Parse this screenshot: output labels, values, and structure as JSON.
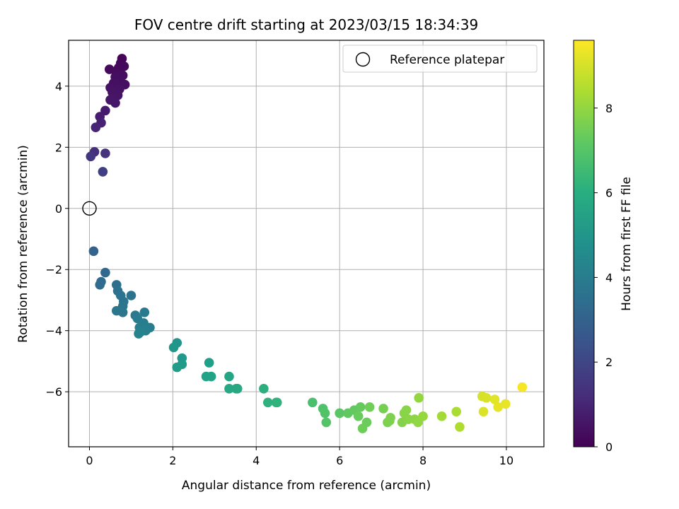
{
  "chart_data": {
    "type": "scatter",
    "title": "FOV centre drift starting at 2023/03/15 18:34:39",
    "xlabel": "Angular distance from reference (arcmin)",
    "ylabel": "Rotation from reference (arcmin)",
    "xlim": [
      -0.5,
      10.9
    ],
    "ylim": [
      -7.8,
      5.5
    ],
    "xticks": [
      0,
      2,
      4,
      6,
      8,
      10
    ],
    "yticks": [
      -6,
      -4,
      -2,
      0,
      2,
      4
    ],
    "grid": true,
    "legend": {
      "placement": "top-right",
      "entries": [
        {
          "label": "Reference platepar",
          "marker": "open-circle"
        }
      ]
    },
    "reference": {
      "x": 0,
      "y": 0
    },
    "colorbar": {
      "label": "Hours from first FF file",
      "range": [
        0,
        9.6
      ],
      "ticks": [
        0,
        2,
        4,
        6,
        8
      ],
      "colormap": "viridis"
    },
    "points": [
      [
        0.78,
        4.9,
        0.1
      ],
      [
        0.75,
        4.75,
        0.15
      ],
      [
        0.83,
        4.65,
        0.2
      ],
      [
        0.7,
        4.6,
        0.22
      ],
      [
        0.48,
        4.55,
        0.25
      ],
      [
        0.65,
        4.4,
        0.3
      ],
      [
        0.8,
        4.35,
        0.32
      ],
      [
        0.62,
        4.3,
        0.35
      ],
      [
        0.72,
        4.2,
        0.38
      ],
      [
        0.58,
        4.1,
        0.4
      ],
      [
        0.85,
        4.05,
        0.42
      ],
      [
        0.5,
        3.95,
        0.45
      ],
      [
        0.72,
        3.9,
        0.48
      ],
      [
        0.55,
        3.8,
        0.5
      ],
      [
        0.68,
        3.7,
        0.52
      ],
      [
        0.58,
        3.6,
        0.55
      ],
      [
        0.5,
        3.55,
        0.57
      ],
      [
        0.62,
        3.45,
        0.6
      ],
      [
        0.38,
        3.2,
        0.7
      ],
      [
        0.25,
        3.0,
        0.8
      ],
      [
        0.28,
        2.8,
        0.9
      ],
      [
        0.15,
        2.65,
        1.0
      ],
      [
        0.12,
        1.85,
        1.3
      ],
      [
        0.38,
        1.8,
        1.4
      ],
      [
        0.03,
        1.7,
        1.5
      ],
      [
        0.32,
        1.2,
        1.8
      ],
      [
        0.1,
        -1.4,
        3.0
      ],
      [
        0.38,
        -2.1,
        3.2
      ],
      [
        0.28,
        -2.4,
        3.3
      ],
      [
        0.25,
        -2.5,
        3.35
      ],
      [
        0.65,
        -2.5,
        3.5
      ],
      [
        0.68,
        -2.7,
        3.55
      ],
      [
        0.75,
        -2.85,
        3.6
      ],
      [
        1.0,
        -2.85,
        3.65
      ],
      [
        0.82,
        -3.05,
        3.7
      ],
      [
        0.8,
        -3.2,
        3.75
      ],
      [
        0.8,
        -3.4,
        3.8
      ],
      [
        0.65,
        -3.35,
        3.8
      ],
      [
        1.1,
        -3.5,
        3.9
      ],
      [
        1.32,
        -3.4,
        3.95
      ],
      [
        1.15,
        -3.6,
        4.0
      ],
      [
        1.3,
        -3.75,
        4.05
      ],
      [
        1.2,
        -3.9,
        4.1
      ],
      [
        1.45,
        -3.9,
        4.15
      ],
      [
        1.35,
        -4.0,
        4.2
      ],
      [
        1.22,
        -4.05,
        4.25
      ],
      [
        1.18,
        -4.1,
        4.3
      ],
      [
        2.1,
        -4.4,
        5.0
      ],
      [
        2.02,
        -4.55,
        5.05
      ],
      [
        2.22,
        -4.9,
        5.15
      ],
      [
        2.22,
        -5.1,
        5.2
      ],
      [
        2.1,
        -5.2,
        5.25
      ],
      [
        2.87,
        -5.05,
        5.4
      ],
      [
        2.8,
        -5.5,
        5.5
      ],
      [
        2.92,
        -5.5,
        5.55
      ],
      [
        3.35,
        -5.5,
        5.65
      ],
      [
        3.35,
        -5.9,
        5.7
      ],
      [
        3.55,
        -5.9,
        5.75
      ],
      [
        3.52,
        -5.9,
        5.78
      ],
      [
        4.18,
        -5.9,
        6.0
      ],
      [
        4.28,
        -6.35,
        6.1
      ],
      [
        4.5,
        -6.35,
        6.15
      ],
      [
        4.48,
        -6.35,
        6.18
      ],
      [
        5.35,
        -6.35,
        6.8
      ],
      [
        5.6,
        -6.55,
        6.9
      ],
      [
        5.65,
        -6.7,
        6.95
      ],
      [
        5.68,
        -7.0,
        7.0
      ],
      [
        6.0,
        -6.7,
        7.1
      ],
      [
        6.2,
        -6.7,
        7.2
      ],
      [
        6.35,
        -6.6,
        7.25
      ],
      [
        6.5,
        -6.5,
        7.3
      ],
      [
        6.45,
        -6.8,
        7.35
      ],
      [
        6.65,
        -7.0,
        7.4
      ],
      [
        6.55,
        -7.2,
        7.45
      ],
      [
        6.72,
        -6.5,
        7.5
      ],
      [
        7.05,
        -6.55,
        7.6
      ],
      [
        7.15,
        -7.0,
        7.65
      ],
      [
        7.22,
        -6.85,
        7.7
      ],
      [
        7.2,
        -6.95,
        7.72
      ],
      [
        7.5,
        -7.0,
        7.8
      ],
      [
        7.55,
        -6.7,
        7.85
      ],
      [
        7.6,
        -6.6,
        7.88
      ],
      [
        7.65,
        -6.9,
        7.9
      ],
      [
        7.8,
        -6.9,
        7.95
      ],
      [
        7.88,
        -7.0,
        8.0
      ],
      [
        7.9,
        -6.2,
        8.05
      ],
      [
        8.0,
        -6.8,
        8.1
      ],
      [
        8.45,
        -6.8,
        8.3
      ],
      [
        8.8,
        -6.65,
        8.4
      ],
      [
        8.88,
        -7.15,
        8.45
      ],
      [
        9.42,
        -6.15,
        9.0
      ],
      [
        9.52,
        -6.2,
        9.05
      ],
      [
        9.45,
        -6.65,
        9.1
      ],
      [
        9.72,
        -6.25,
        9.2
      ],
      [
        9.8,
        -6.5,
        9.25
      ],
      [
        9.98,
        -6.4,
        9.3
      ],
      [
        10.38,
        -5.85,
        9.5
      ]
    ]
  }
}
